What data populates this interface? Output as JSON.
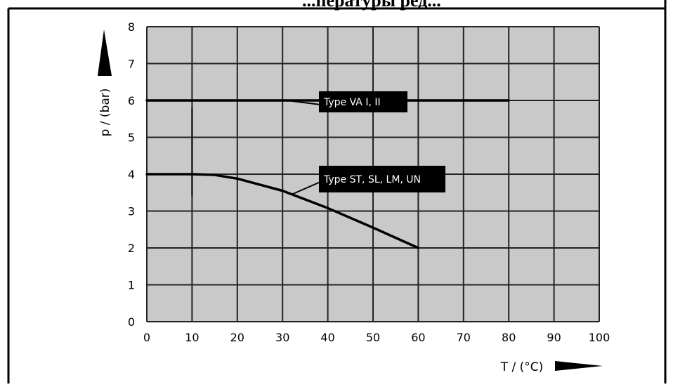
{
  "page": {
    "header_fragment": "...пературы ред..."
  },
  "chart_data": {
    "type": "line",
    "title": "",
    "xlabel": "T / (°C)",
    "ylabel": "p / (bar)",
    "xlim": [
      0,
      100
    ],
    "ylim": [
      0,
      8
    ],
    "x_ticks": [
      0,
      10,
      20,
      30,
      40,
      50,
      60,
      70,
      80,
      90,
      100
    ],
    "y_ticks": [
      0,
      1,
      2,
      3,
      4,
      5,
      6,
      7,
      8
    ],
    "grid": true,
    "series": [
      {
        "name": "Type VA I, II",
        "x": [
          0,
          80
        ],
        "y": [
          6,
          6
        ]
      },
      {
        "name": "Type ST, SL, LM, UN",
        "x": [
          0,
          10,
          15,
          20,
          30,
          40,
          50,
          60
        ],
        "y": [
          4,
          4,
          3.98,
          3.88,
          3.55,
          3.08,
          2.55,
          2.0
        ]
      }
    ],
    "annotations": [
      {
        "text": "Type VA I, II",
        "series": 0,
        "anchor_x": 31,
        "anchor_y": 6
      },
      {
        "text": "Type ST, SL, LM, UN",
        "series": 1,
        "anchor_x": 32,
        "anchor_y": 3.45
      }
    ],
    "marker_line": {
      "x": 10,
      "y": [
        3.4,
        5.8
      ]
    }
  }
}
